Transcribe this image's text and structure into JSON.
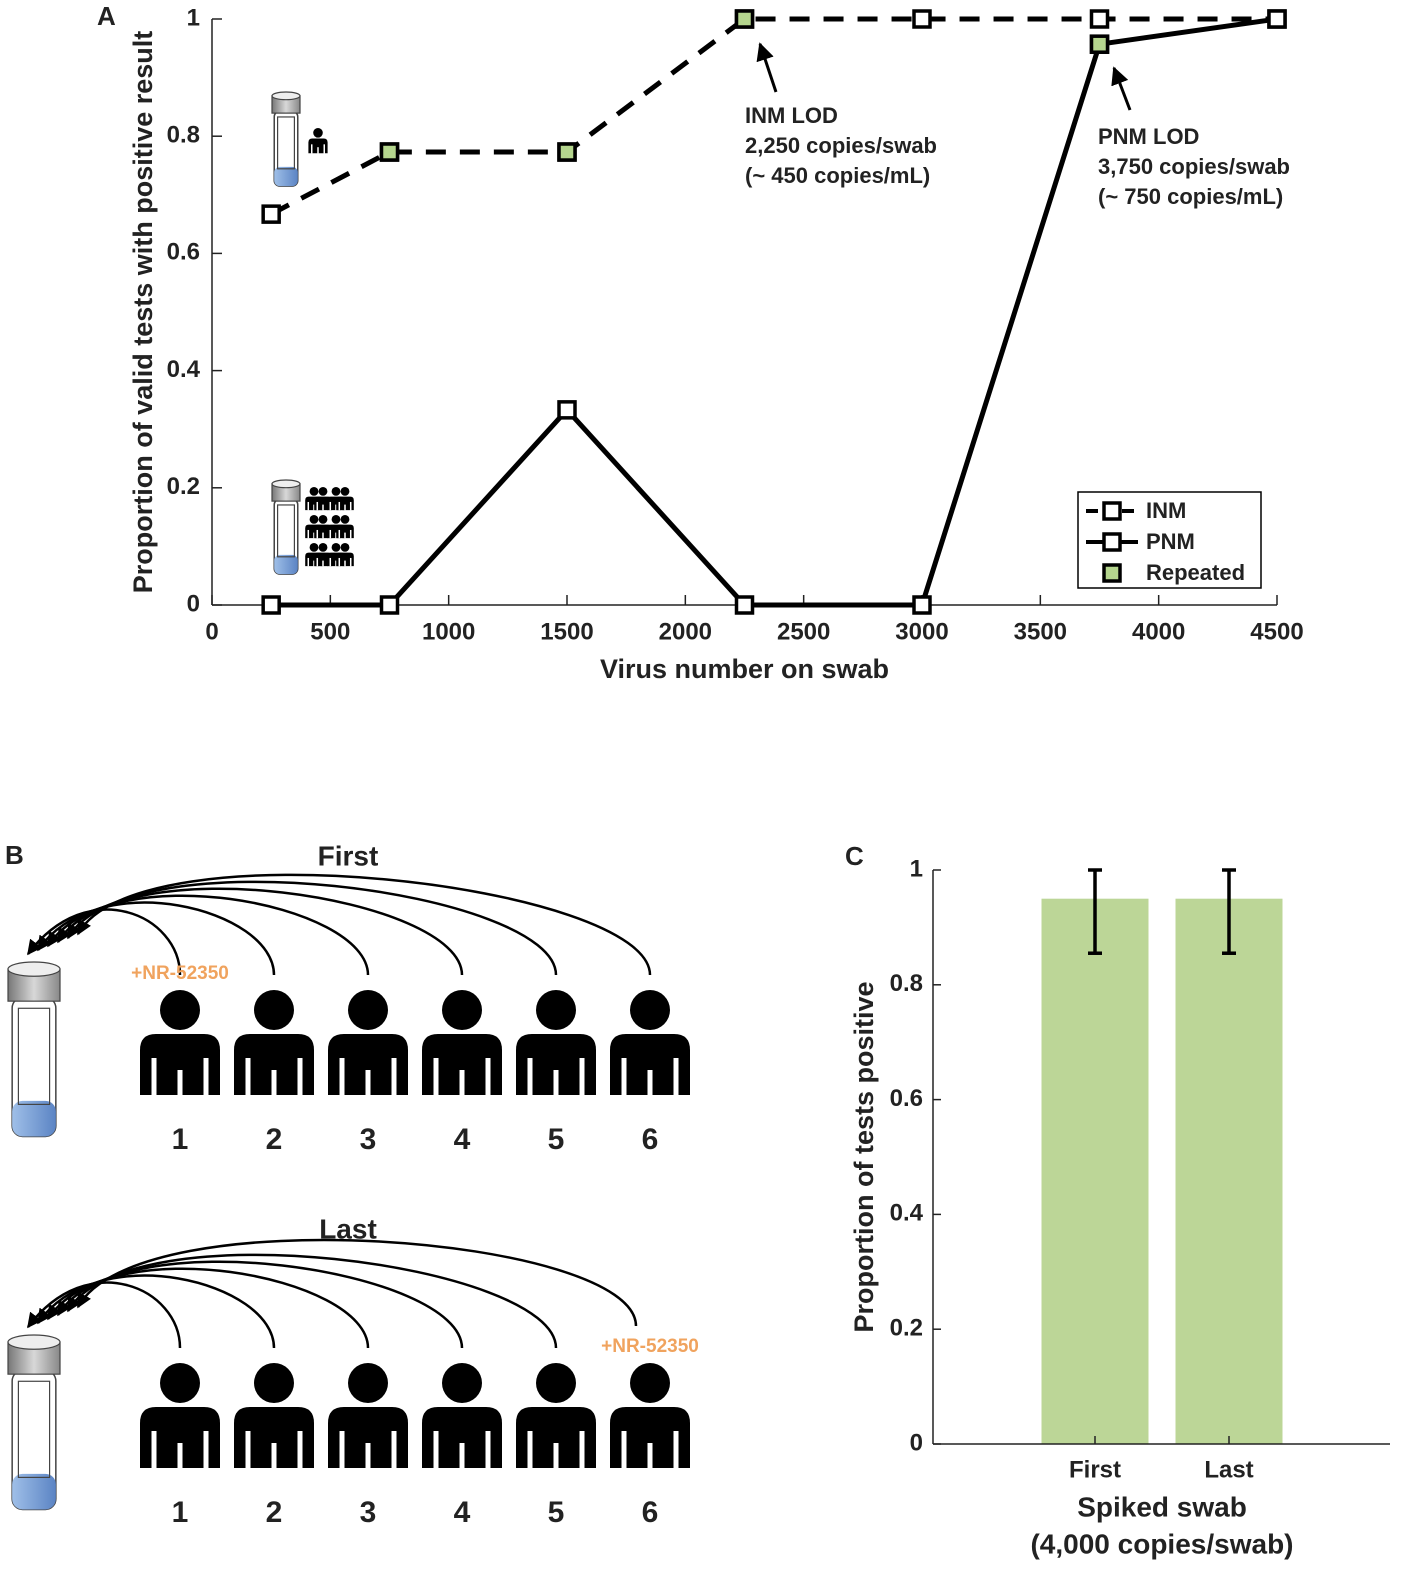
{
  "chart_data": [
    {
      "type": "line",
      "panel": "A",
      "xlabel": "Virus number on swab",
      "ylabel": "Proportion of valid tests with positive result",
      "xlim": [
        0,
        4500
      ],
      "xticks": [
        0,
        500,
        1000,
        1500,
        2000,
        2500,
        3000,
        3500,
        4000,
        4500
      ],
      "ylim": [
        0,
        1
      ],
      "yticks": [
        0,
        0.2,
        0.4,
        0.6,
        0.8,
        1
      ],
      "series": [
        {
          "name": "INM",
          "color": "#000000",
          "dash": true,
          "x": [
            250,
            750,
            1500,
            2250,
            3000,
            3750,
            4500
          ],
          "values": [
            0.667,
            0.773,
            0.773,
            1,
            1,
            1,
            1
          ]
        },
        {
          "name": "PNM",
          "color": "#000000",
          "dash": false,
          "x": [
            250,
            750,
            1500,
            2250,
            3000,
            3750,
            4500
          ],
          "values": [
            0,
            0,
            0.333,
            0,
            0,
            0.957,
            1
          ]
        },
        {
          "name": "Repeated",
          "color": "#b5d68e",
          "markers_only": true,
          "x": [
            750,
            1500,
            2250,
            3750
          ],
          "values": [
            0.773,
            0.773,
            1,
            0.957
          ]
        }
      ],
      "annotations": [
        {
          "lines": [
            "INM LOD",
            "2,250 copies/swab",
            "(~ 450 copies/mL)"
          ]
        },
        {
          "lines": [
            "PNM LOD",
            "3,750 copies/swab",
            "(~ 750 copies/mL)"
          ]
        }
      ],
      "legend": "lower right"
    },
    {
      "type": "bar",
      "panel": "C",
      "xlabel": [
        "Spiked swab",
        "(4,000 copies/swab)"
      ],
      "ylabel": "Proportion of tests positive",
      "categories": [
        "First",
        "Last"
      ],
      "values": [
        0.95,
        0.95
      ],
      "errors_lower": [
        0.095,
        0.095
      ],
      "errors_upper": [
        0.05,
        0.05
      ],
      "color": "#bcd697",
      "ylim": [
        0,
        1
      ],
      "yticks": [
        0,
        0.2,
        0.4,
        0.6,
        0.8,
        1
      ]
    }
  ],
  "diagram": {
    "panel": "B",
    "groups": [
      {
        "title": "First",
        "spike": "+NR-52350",
        "numbers": [
          "1",
          "2",
          "3",
          "4",
          "5",
          "6"
        ]
      },
      {
        "title": "Last",
        "spike": "+NR-52350",
        "numbers": [
          "1",
          "2",
          "3",
          "4",
          "5",
          "6"
        ]
      }
    ]
  }
}
